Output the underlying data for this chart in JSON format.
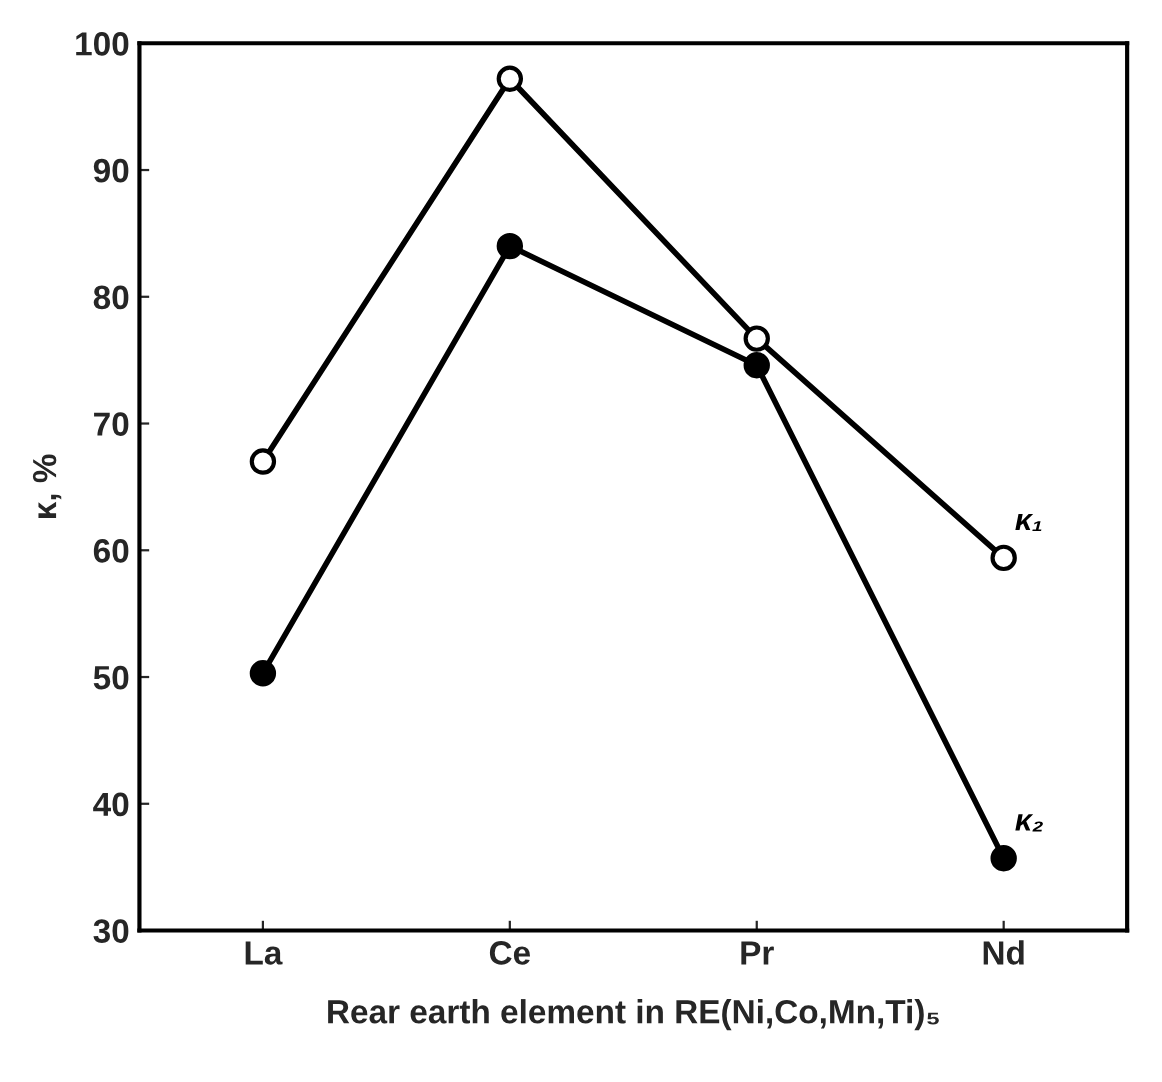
{
  "chart_data": {
    "type": "line",
    "xlabel": "Rear earth element in RE(Ni,Co,Mn,Ti)₅",
    "ylabel": "κ, %",
    "categories": [
      "La",
      "Ce",
      "Pr",
      "Nd"
    ],
    "series": [
      {
        "name": "κ₁",
        "color": "#000000",
        "marker": "open_circle",
        "values": [
          67,
          97.2,
          76.7,
          59.4
        ]
      },
      {
        "name": "κ₂",
        "color": "#000000",
        "marker": "circle",
        "values": [
          50.3,
          84,
          74.6,
          35.7
        ]
      }
    ],
    "ylim": [
      30,
      100
    ],
    "yticks": [
      30,
      40,
      50,
      60,
      70,
      80,
      90,
      100
    ],
    "grid": false,
    "legend": false,
    "line_style": "solid"
  }
}
